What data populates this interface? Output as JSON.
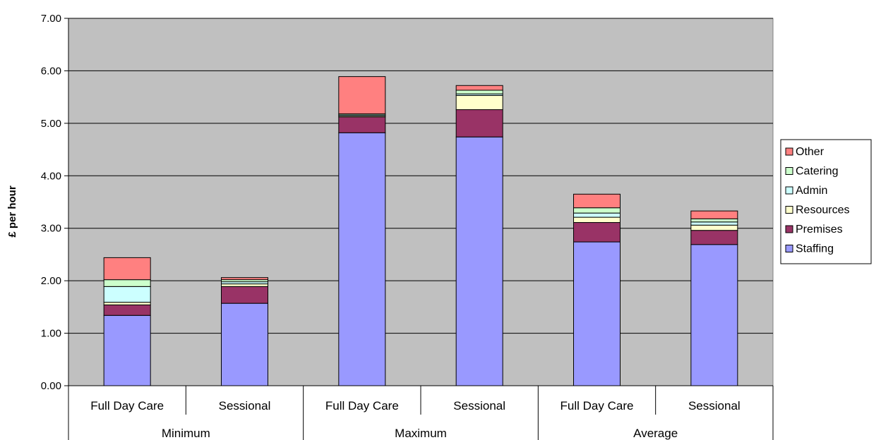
{
  "chart_data": {
    "type": "bar",
    "stacked": true,
    "title": "",
    "ylabel": "£ per hour",
    "xlabel": "",
    "ylim": [
      0,
      7
    ],
    "yticks": [
      "0.00",
      "1.00",
      "2.00",
      "3.00",
      "4.00",
      "5.00",
      "6.00",
      "7.00"
    ],
    "grid": true,
    "legend_position": "right",
    "groups": [
      "Minimum",
      "Maximum",
      "Average"
    ],
    "categories": [
      "Full Day Care",
      "Sessional",
      "Full Day Care",
      "Sessional",
      "Full Day Care",
      "Sessional"
    ],
    "series": [
      {
        "name": "Staffing",
        "color": "#9999ff",
        "values": [
          1.34,
          1.57,
          4.82,
          4.74,
          2.74,
          2.69
        ]
      },
      {
        "name": "Premises",
        "color": "#993366",
        "values": [
          0.2,
          0.32,
          0.3,
          0.52,
          0.37,
          0.27
        ]
      },
      {
        "name": "Resources",
        "color": "#ffffcc",
        "values": [
          0.05,
          0.05,
          0.02,
          0.27,
          0.1,
          0.1
        ]
      },
      {
        "name": "Admin",
        "color": "#ccffff",
        "values": [
          0.3,
          0.04,
          0.02,
          0.03,
          0.08,
          0.06
        ]
      },
      {
        "name": "Catering",
        "color": "#ccffcc",
        "values": [
          0.13,
          0.04,
          0.02,
          0.07,
          0.1,
          0.06
        ]
      },
      {
        "name": "Other",
        "color": "#ff8080",
        "values": [
          0.42,
          0.04,
          0.71,
          0.09,
          0.26,
          0.15
        ]
      }
    ],
    "plot_background": "#c0c0c0"
  }
}
